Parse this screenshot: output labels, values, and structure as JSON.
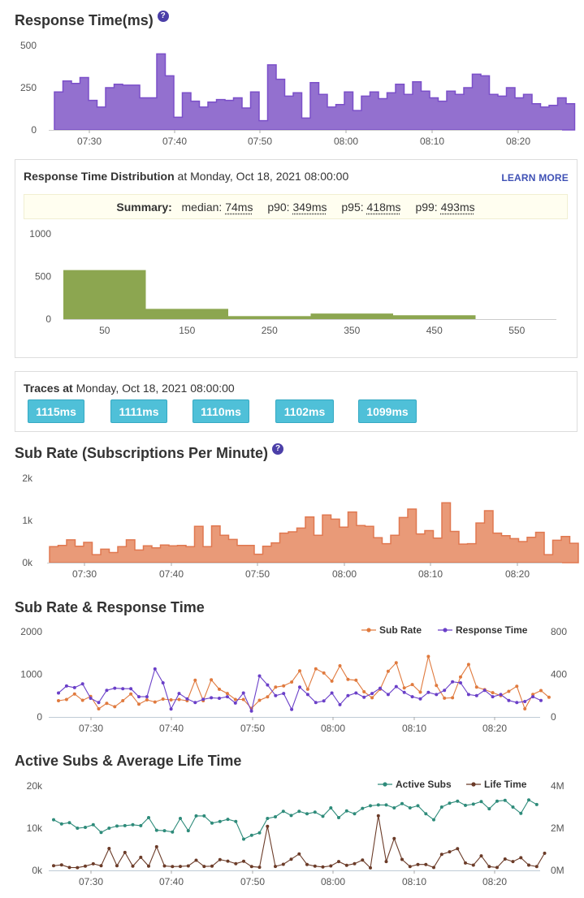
{
  "response_time": {
    "title": "Response Time(ms)",
    "help_icon": "help-icon"
  },
  "distribution": {
    "title": "Response Time Distribution",
    "at_text": " at Monday, Oct 18, 2021 08:00:00",
    "learn_more": "LEARN MORE",
    "summary_label": "Summary:",
    "median_label": "median:",
    "median": "74ms",
    "p90_label": "p90:",
    "p90": "349ms",
    "p95_label": "p95:",
    "p95": "418ms",
    "p99_label": "p99:",
    "p99": "493ms"
  },
  "traces": {
    "title": "Traces at",
    "at_text": " Monday, Oct 18, 2021 08:00:00",
    "items": [
      "1115ms",
      "1111ms",
      "1110ms",
      "1102ms",
      "1099ms"
    ]
  },
  "sub_rate": {
    "title": "Sub Rate (Subscriptions Per Minute)",
    "help_icon": "help-icon"
  },
  "combo1": {
    "title": "Sub Rate & Response Time"
  },
  "combo2": {
    "title": "Active Subs & Average Life Time"
  },
  "colors": {
    "purple": "#9370cf",
    "purple_line": "#7b4fc9",
    "orange": "#e99a78",
    "orange_line": "#e07850",
    "orange_dot": "#e07a3e",
    "green": "#8ca650",
    "teal": "#2e8b7a",
    "brown": "#6b3b28",
    "trace": "#4fc0d8"
  },
  "chart_data": [
    {
      "id": "response_time",
      "type": "area",
      "title": "Response Time(ms)",
      "x_ticks": [
        "07:30",
        "07:40",
        "07:50",
        "08:00",
        "08:10",
        "08:20"
      ],
      "x_start_minute": 26,
      "y_ticks": [
        0,
        250,
        500
      ],
      "ylim": [
        0,
        500
      ],
      "values": [
        225,
        290,
        275,
        310,
        175,
        135,
        250,
        270,
        265,
        265,
        190,
        190,
        450,
        320,
        75,
        220,
        170,
        135,
        165,
        180,
        175,
        190,
        130,
        225,
        55,
        385,
        300,
        200,
        220,
        70,
        280,
        210,
        135,
        150,
        225,
        115,
        200,
        225,
        185,
        220,
        270,
        210,
        285,
        230,
        190,
        170,
        230,
        210,
        250,
        330,
        320,
        210,
        200,
        250,
        190,
        210,
        155,
        135,
        145,
        190,
        155
      ]
    },
    {
      "id": "distribution",
      "type": "bar",
      "title": "Response Time Distribution",
      "categories": [
        "50",
        "150",
        "250",
        "350",
        "450",
        "550"
      ],
      "bin_edges": [
        0,
        100,
        200,
        300,
        400,
        500,
        600
      ],
      "values": [
        575,
        120,
        35,
        65,
        45,
        0
      ],
      "y_ticks": [
        0,
        500,
        1000
      ],
      "ylim": [
        0,
        1000
      ]
    },
    {
      "id": "sub_rate",
      "type": "area",
      "title": "Sub Rate (Subscriptions Per Minute)",
      "x_ticks": [
        "07:30",
        "07:40",
        "07:50",
        "08:00",
        "08:10",
        "08:20"
      ],
      "x_start_minute": 26,
      "y_ticks": [
        "0k",
        "1k",
        "2k"
      ],
      "ylim": [
        0,
        2000
      ],
      "values": [
        380,
        410,
        540,
        390,
        480,
        190,
        320,
        240,
        380,
        540,
        300,
        400,
        350,
        420,
        400,
        410,
        380,
        860,
        380,
        870,
        650,
        550,
        410,
        410,
        200,
        390,
        470,
        700,
        730,
        820,
        1080,
        650,
        1130,
        1030,
        840,
        1200,
        880,
        860,
        590,
        450,
        650,
        1070,
        1270,
        680,
        760,
        580,
        1420,
        740,
        440,
        450,
        940,
        1230,
        700,
        640,
        570,
        500,
        600,
        720,
        190,
        530,
        620,
        460
      ]
    },
    {
      "id": "sub_rate_response_time",
      "type": "line",
      "title": "Sub Rate & Response Time",
      "x_ticks": [
        "07:30",
        "07:40",
        "07:50",
        "08:00",
        "08:10",
        "08:20"
      ],
      "y_left_ticks": [
        0,
        1000,
        2000
      ],
      "y_right_ticks": [
        0,
        400,
        800
      ],
      "ylim_left": [
        0,
        2000
      ],
      "ylim_right": [
        0,
        800
      ],
      "series": [
        {
          "name": "Sub Rate",
          "axis": "left",
          "values": [
            380,
            410,
            540,
            390,
            480,
            190,
            320,
            240,
            380,
            540,
            300,
            400,
            350,
            420,
            400,
            410,
            380,
            860,
            380,
            870,
            650,
            550,
            410,
            410,
            200,
            390,
            470,
            700,
            730,
            820,
            1080,
            650,
            1130,
            1030,
            840,
            1200,
            880,
            860,
            590,
            450,
            650,
            1070,
            1270,
            680,
            760,
            580,
            1420,
            740,
            440,
            450,
            940,
            1230,
            700,
            640,
            570,
            500,
            600,
            720,
            190,
            530,
            620,
            460
          ]
        },
        {
          "name": "Response Time",
          "axis": "right",
          "values": [
            225,
            290,
            275,
            310,
            175,
            135,
            250,
            270,
            265,
            265,
            190,
            190,
            450,
            320,
            75,
            220,
            170,
            135,
            165,
            180,
            175,
            190,
            130,
            225,
            55,
            385,
            300,
            200,
            220,
            70,
            280,
            210,
            135,
            150,
            225,
            115,
            200,
            225,
            185,
            220,
            270,
            210,
            285,
            230,
            190,
            170,
            230,
            210,
            250,
            330,
            320,
            210,
            200,
            250,
            190,
            210,
            155,
            135,
            145,
            190,
            155
          ]
        }
      ]
    },
    {
      "id": "active_subs_life_time",
      "type": "line",
      "title": "Active Subs & Average Life Time",
      "x_ticks": [
        "07:30",
        "07:40",
        "07:50",
        "08:00",
        "08:10",
        "08:20"
      ],
      "y_left_ticks": [
        "0k",
        "10k",
        "20k"
      ],
      "y_right_ticks": [
        "0M",
        "2M",
        "4M"
      ],
      "ylim_left": [
        0,
        20000
      ],
      "ylim_right": [
        0,
        4000000
      ],
      "series": [
        {
          "name": "Active Subs",
          "axis": "left",
          "values": [
            12000,
            11000,
            11300,
            10000,
            10200,
            10800,
            9000,
            10000,
            10500,
            10600,
            10800,
            10600,
            12500,
            9500,
            9400,
            9100,
            12300,
            9400,
            12900,
            12900,
            11200,
            11600,
            12100,
            11600,
            7400,
            8300,
            8900,
            12300,
            12700,
            14000,
            13000,
            14000,
            13400,
            13800,
            12800,
            14800,
            12500,
            14100,
            13400,
            14700,
            15300,
            15500,
            15500,
            14800,
            15800,
            14800,
            15300,
            13400,
            12000,
            15000,
            15900,
            16400,
            15400,
            15700,
            16300,
            14600,
            16400,
            16600,
            15000,
            13500,
            16700,
            15600
          ]
        },
        {
          "name": "Life Time",
          "axis": "right",
          "values": [
            220000,
            260000,
            140000,
            130000,
            200000,
            310000,
            220000,
            1040000,
            220000,
            850000,
            200000,
            620000,
            200000,
            1120000,
            210000,
            180000,
            190000,
            210000,
            480000,
            190000,
            200000,
            510000,
            440000,
            320000,
            430000,
            180000,
            150000,
            2090000,
            190000,
            290000,
            530000,
            780000,
            280000,
            200000,
            160000,
            210000,
            420000,
            240000,
            320000,
            490000,
            120000,
            2590000,
            420000,
            1510000,
            520000,
            180000,
            280000,
            280000,
            140000,
            760000,
            880000,
            1030000,
            350000,
            250000,
            690000,
            180000,
            140000,
            540000,
            420000,
            600000,
            250000,
            180000,
            810000
          ]
        }
      ]
    }
  ]
}
